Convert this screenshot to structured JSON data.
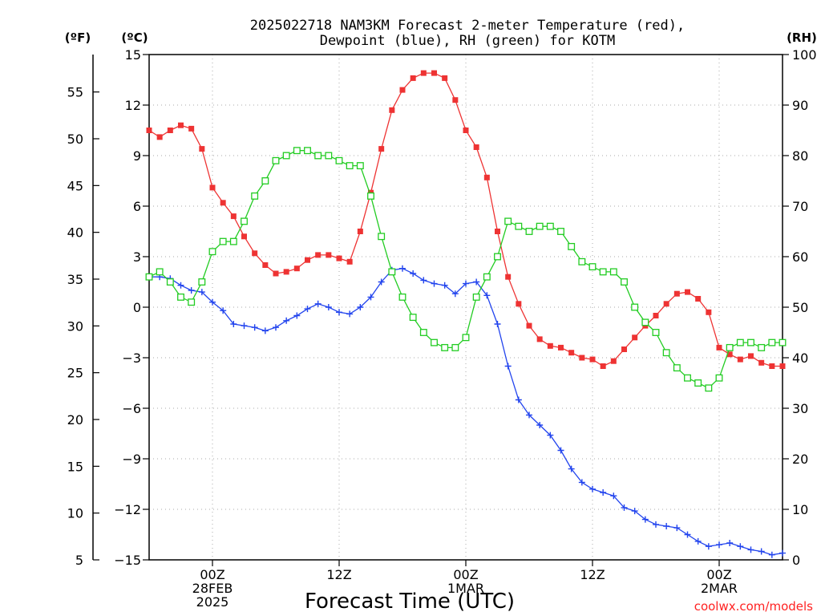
{
  "chart_data": {
    "type": "line",
    "title_line1": "2025022718 NAM3KM Forecast 2-meter Temperature (red),",
    "title_line2": "Dewpoint (blue), RH (green) for KOTM",
    "xlabel": "Forecast Time (UTC)",
    "credit": "coolwx.com/models",
    "unit_labels": {
      "fahrenheit": "(ºF)",
      "celsius": "(ºC)",
      "rh": "(RH)"
    },
    "x_range_hours": [
      -6,
      54
    ],
    "x_tick_labels": [
      {
        "hour": 0,
        "lines": [
          "00Z",
          "28FEB",
          "2025"
        ]
      },
      {
        "hour": 12,
        "lines": [
          "12Z"
        ]
      },
      {
        "hour": 24,
        "lines": [
          "00Z",
          "1MAR"
        ]
      },
      {
        "hour": 36,
        "lines": [
          "12Z"
        ]
      },
      {
        "hour": 48,
        "lines": [
          "00Z",
          "2MAR"
        ]
      }
    ],
    "celsius_axis": {
      "range": [
        -15,
        15
      ],
      "ticks": [
        15,
        12,
        9,
        6,
        3,
        0,
        -3,
        -6,
        -9,
        -12,
        -15
      ],
      "tick_labels": [
        "15",
        "12",
        "9",
        "6",
        "3",
        "0",
        "−3",
        "−6",
        "−9",
        "−12",
        "−15"
      ]
    },
    "fahrenheit_axis": {
      "ticks": [
        55,
        50,
        45,
        40,
        35,
        30,
        25,
        20,
        15,
        10,
        5
      ]
    },
    "rh_axis": {
      "range": [
        0,
        100
      ],
      "ticks": [
        100,
        90,
        80,
        70,
        60,
        50,
        40,
        30,
        20,
        10,
        0
      ]
    },
    "grid": true,
    "series": [
      {
        "name": "Temperature",
        "color": "#ee3333",
        "marker": "filled-square",
        "axis": "celsius",
        "points": [
          [
            -6,
            10.5
          ],
          [
            -5,
            10.1
          ],
          [
            -4,
            10.5
          ],
          [
            -3,
            10.8
          ],
          [
            -2,
            10.6
          ],
          [
            -1,
            9.4
          ],
          [
            0,
            7.1
          ],
          [
            1,
            6.2
          ],
          [
            2,
            5.4
          ],
          [
            3,
            4.2
          ],
          [
            4,
            3.2
          ],
          [
            5,
            2.5
          ],
          [
            6,
            2.0
          ],
          [
            7,
            2.1
          ],
          [
            8,
            2.3
          ],
          [
            9,
            2.8
          ],
          [
            10,
            3.1
          ],
          [
            11,
            3.1
          ],
          [
            12,
            2.9
          ],
          [
            13,
            2.7
          ],
          [
            14,
            4.5
          ],
          [
            15,
            6.8
          ],
          [
            16,
            9.4
          ],
          [
            17,
            11.7
          ],
          [
            18,
            12.9
          ],
          [
            19,
            13.6
          ],
          [
            20,
            13.9
          ],
          [
            21,
            13.9
          ],
          [
            22,
            13.6
          ],
          [
            23,
            12.3
          ],
          [
            24,
            10.5
          ],
          [
            25,
            9.5
          ],
          [
            26,
            7.7
          ],
          [
            27,
            4.5
          ],
          [
            28,
            1.8
          ],
          [
            29,
            0.2
          ],
          [
            30,
            -1.1
          ],
          [
            31,
            -1.9
          ],
          [
            32,
            -2.3
          ],
          [
            33,
            -2.4
          ],
          [
            34,
            -2.7
          ],
          [
            35,
            -3.0
          ],
          [
            36,
            -3.1
          ],
          [
            37,
            -3.5
          ],
          [
            38,
            -3.2
          ],
          [
            39,
            -2.5
          ],
          [
            40,
            -1.8
          ],
          [
            41,
            -1.1
          ],
          [
            42,
            -0.5
          ],
          [
            43,
            0.2
          ],
          [
            44,
            0.8
          ],
          [
            45,
            0.9
          ],
          [
            46,
            0.5
          ],
          [
            47,
            -0.3
          ],
          [
            48,
            -2.4
          ],
          [
            49,
            -2.8
          ],
          [
            50,
            -3.1
          ],
          [
            51,
            -2.9
          ],
          [
            52,
            -3.3
          ],
          [
            53,
            -3.5
          ],
          [
            54,
            -3.5
          ]
        ]
      },
      {
        "name": "Dewpoint",
        "color": "#2244ee",
        "marker": "plus",
        "axis": "celsius",
        "points": [
          [
            -6,
            1.8
          ],
          [
            -5,
            1.8
          ],
          [
            -4,
            1.7
          ],
          [
            -3,
            1.3
          ],
          [
            -2,
            1.0
          ],
          [
            -1,
            0.9
          ],
          [
            0,
            0.3
          ],
          [
            1,
            -0.2
          ],
          [
            2,
            -1.0
          ],
          [
            3,
            -1.1
          ],
          [
            4,
            -1.2
          ],
          [
            5,
            -1.4
          ],
          [
            6,
            -1.2
          ],
          [
            7,
            -0.8
          ],
          [
            8,
            -0.5
          ],
          [
            9,
            -0.1
          ],
          [
            10,
            0.2
          ],
          [
            11,
            0.0
          ],
          [
            12,
            -0.3
          ],
          [
            13,
            -0.4
          ],
          [
            14,
            0.0
          ],
          [
            15,
            0.6
          ],
          [
            16,
            1.5
          ],
          [
            17,
            2.2
          ],
          [
            18,
            2.3
          ],
          [
            19,
            2.0
          ],
          [
            20,
            1.6
          ],
          [
            21,
            1.4
          ],
          [
            22,
            1.3
          ],
          [
            23,
            0.8
          ],
          [
            24,
            1.4
          ],
          [
            25,
            1.5
          ],
          [
            26,
            0.7
          ],
          [
            27,
            -1.0
          ],
          [
            28,
            -3.5
          ],
          [
            29,
            -5.5
          ],
          [
            30,
            -6.4
          ],
          [
            31,
            -7.0
          ],
          [
            32,
            -7.6
          ],
          [
            33,
            -8.5
          ],
          [
            34,
            -9.6
          ],
          [
            35,
            -10.4
          ],
          [
            36,
            -10.8
          ],
          [
            37,
            -11.0
          ],
          [
            38,
            -11.2
          ],
          [
            39,
            -11.9
          ],
          [
            40,
            -12.1
          ],
          [
            41,
            -12.6
          ],
          [
            42,
            -12.9
          ],
          [
            43,
            -13.0
          ],
          [
            44,
            -13.1
          ],
          [
            45,
            -13.5
          ],
          [
            46,
            -13.9
          ],
          [
            47,
            -14.2
          ],
          [
            48,
            -14.1
          ],
          [
            49,
            -14.0
          ],
          [
            50,
            -14.2
          ],
          [
            51,
            -14.4
          ],
          [
            52,
            -14.5
          ],
          [
            53,
            -14.7
          ],
          [
            54,
            -14.6
          ]
        ]
      },
      {
        "name": "RH",
        "color": "#22cc22",
        "marker": "open-square",
        "axis": "rh",
        "points": [
          [
            -6,
            56
          ],
          [
            -5,
            57
          ],
          [
            -4,
            55
          ],
          [
            -3,
            52
          ],
          [
            -2,
            51
          ],
          [
            -1,
            55
          ],
          [
            0,
            61
          ],
          [
            1,
            63
          ],
          [
            2,
            63
          ],
          [
            3,
            67
          ],
          [
            4,
            72
          ],
          [
            5,
            75
          ],
          [
            6,
            79
          ],
          [
            7,
            80
          ],
          [
            8,
            81
          ],
          [
            9,
            81
          ],
          [
            10,
            80
          ],
          [
            11,
            80
          ],
          [
            12,
            79
          ],
          [
            13,
            78
          ],
          [
            14,
            78
          ],
          [
            15,
            72
          ],
          [
            16,
            64
          ],
          [
            17,
            57
          ],
          [
            18,
            52
          ],
          [
            19,
            48
          ],
          [
            20,
            45
          ],
          [
            21,
            43
          ],
          [
            22,
            42
          ],
          [
            23,
            42
          ],
          [
            24,
            44
          ],
          [
            25,
            52
          ],
          [
            26,
            56
          ],
          [
            27,
            60
          ],
          [
            28,
            67
          ],
          [
            29,
            66
          ],
          [
            30,
            65
          ],
          [
            31,
            66
          ],
          [
            32,
            66
          ],
          [
            33,
            65
          ],
          [
            34,
            62
          ],
          [
            35,
            59
          ],
          [
            36,
            58
          ],
          [
            37,
            57
          ],
          [
            38,
            57
          ],
          [
            39,
            55
          ],
          [
            40,
            50
          ],
          [
            41,
            47
          ],
          [
            42,
            45
          ],
          [
            43,
            41
          ],
          [
            44,
            38
          ],
          [
            45,
            36
          ],
          [
            46,
            35
          ],
          [
            47,
            34
          ],
          [
            48,
            36
          ],
          [
            49,
            42
          ],
          [
            50,
            43
          ],
          [
            51,
            43
          ],
          [
            52,
            42
          ],
          [
            53,
            43
          ],
          [
            54,
            43
          ]
        ]
      }
    ]
  }
}
